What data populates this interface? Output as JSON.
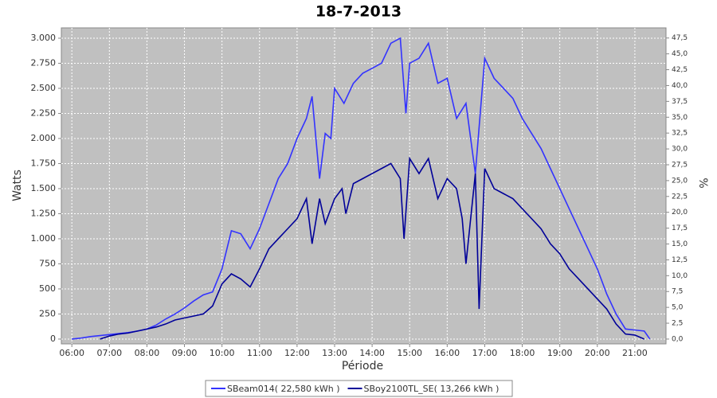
{
  "chart_data": {
    "type": "line",
    "title": "18-7-2013",
    "x_label": "Période",
    "y_label": "Watts",
    "y2_label": "%",
    "xlim": [
      5.72,
      21.83
    ],
    "xticks": [
      {
        "value": 6,
        "label": "06:00"
      },
      {
        "value": 7,
        "label": "07:00"
      },
      {
        "value": 8,
        "label": "08:00"
      },
      {
        "value": 9,
        "label": "09:00"
      },
      {
        "value": 10,
        "label": "10:00"
      },
      {
        "value": 11,
        "label": "11:00"
      },
      {
        "value": 12,
        "label": "12:00"
      },
      {
        "value": 13,
        "label": "13:00"
      },
      {
        "value": 14,
        "label": "14:00"
      },
      {
        "value": 15,
        "label": "15:00"
      },
      {
        "value": 16,
        "label": "16:00"
      },
      {
        "value": 17,
        "label": "17:00"
      },
      {
        "value": 18,
        "label": "18:00"
      },
      {
        "value": 19,
        "label": "19:00"
      },
      {
        "value": 20,
        "label": "20:00"
      },
      {
        "value": 21,
        "label": "21:00"
      }
    ],
    "ylim": [
      -48,
      3103
    ],
    "yticks": [
      0,
      250,
      500,
      750,
      {
        "value": 1000,
        "label": "1.000"
      },
      {
        "value": 1250,
        "label": "1.250"
      },
      {
        "value": 1500,
        "label": "1.500"
      },
      {
        "value": 1750,
        "label": "1.750"
      },
      {
        "value": 2000,
        "label": "2.000"
      },
      {
        "value": 2250,
        "label": "2.250"
      },
      {
        "value": 2500,
        "label": "2.500"
      },
      {
        "value": 2750,
        "label": "2.750"
      },
      {
        "value": 3000,
        "label": "3.000"
      }
    ],
    "y2lim": [
      -0.76,
      49.1
    ],
    "y2ticks": [
      {
        "value": 0,
        "label": "0,0"
      },
      {
        "value": 2.5,
        "label": "2,5"
      },
      {
        "value": 5,
        "label": "5,0"
      },
      {
        "value": 7.5,
        "label": "7,5"
      },
      {
        "value": 10,
        "label": "10,0"
      },
      {
        "value": 12.5,
        "label": "12,5"
      },
      {
        "value": 15,
        "label": "15,0"
      },
      {
        "value": 17.5,
        "label": "17,5"
      },
      {
        "value": 20,
        "label": "20,0"
      },
      {
        "value": 22.5,
        "label": "22,5"
      },
      {
        "value": 25,
        "label": "25,0"
      },
      {
        "value": 27.5,
        "label": "27,5"
      },
      {
        "value": 30,
        "label": "30,0"
      },
      {
        "value": 32.5,
        "label": "32,5"
      },
      {
        "value": 35,
        "label": "35,0"
      },
      {
        "value": 37.5,
        "label": "37,5"
      },
      {
        "value": 40,
        "label": "40,0"
      },
      {
        "value": 42.5,
        "label": "42,5"
      },
      {
        "value": 45,
        "label": "45,0"
      },
      {
        "value": 47.5,
        "label": "47,5"
      }
    ],
    "grid": true,
    "background": "#c0c0c0",
    "legend": "bottom",
    "series": [
      {
        "name": "SBeam014( 22,580 kWh )",
        "color": "#3333ff",
        "x": [
          6.0,
          6.25,
          6.5,
          6.75,
          7.0,
          7.25,
          7.5,
          7.75,
          8.0,
          8.25,
          8.5,
          8.75,
          9.0,
          9.25,
          9.5,
          9.75,
          10.0,
          10.25,
          10.5,
          10.75,
          11.0,
          11.25,
          11.5,
          11.75,
          12.0,
          12.25,
          12.4,
          12.6,
          12.75,
          12.9,
          13.0,
          13.25,
          13.5,
          13.75,
          14.0,
          14.25,
          14.5,
          14.75,
          14.9,
          15.0,
          15.25,
          15.5,
          15.75,
          16.0,
          16.25,
          16.5,
          16.75,
          17.0,
          17.25,
          17.5,
          17.75,
          18.0,
          18.25,
          18.5,
          18.75,
          19.0,
          19.25,
          19.5,
          19.75,
          20.0,
          20.25,
          20.5,
          20.75,
          21.0,
          21.25,
          21.4
        ],
        "values": [
          0,
          10,
          25,
          35,
          45,
          55,
          65,
          80,
          100,
          140,
          200,
          250,
          310,
          380,
          440,
          470,
          700,
          1080,
          1050,
          900,
          1100,
          1350,
          1600,
          1750,
          2000,
          2200,
          2420,
          1600,
          2050,
          2000,
          2500,
          2350,
          2550,
          2650,
          2700,
          2750,
          2950,
          3000,
          2250,
          2750,
          2800,
          2950,
          2550,
          2600,
          2200,
          2350,
          1650,
          2800,
          2600,
          2500,
          2400,
          2200,
          2050,
          1900,
          1700,
          1500,
          1300,
          1100,
          900,
          700,
          450,
          250,
          100,
          90,
          80,
          0
        ]
      },
      {
        "name": "SBoy2100TL_SE( 13,266 kWh )",
        "color": "#000099",
        "x": [
          6.75,
          7.0,
          7.25,
          7.5,
          7.75,
          8.0,
          8.25,
          8.5,
          8.75,
          9.0,
          9.25,
          9.5,
          9.75,
          10.0,
          10.25,
          10.5,
          10.75,
          11.0,
          11.25,
          11.5,
          11.75,
          12.0,
          12.25,
          12.4,
          12.6,
          12.75,
          12.9,
          13.0,
          13.2,
          13.3,
          13.5,
          13.75,
          14.0,
          14.25,
          14.5,
          14.75,
          14.85,
          15.0,
          15.25,
          15.5,
          15.75,
          16.0,
          16.25,
          16.4,
          16.5,
          16.75,
          16.85,
          17.0,
          17.25,
          17.5,
          17.75,
          18.0,
          18.25,
          18.5,
          18.75,
          19.0,
          19.25,
          19.5,
          19.75,
          20.0,
          20.25,
          20.5,
          20.75,
          21.0,
          21.25
        ],
        "values": [
          0,
          30,
          50,
          60,
          80,
          100,
          120,
          150,
          190,
          210,
          230,
          250,
          330,
          550,
          650,
          600,
          520,
          700,
          900,
          1000,
          1100,
          1200,
          1400,
          950,
          1400,
          1150,
          1300,
          1400,
          1500,
          1250,
          1550,
          1600,
          1650,
          1700,
          1750,
          1600,
          1000,
          1800,
          1650,
          1800,
          1400,
          1600,
          1500,
          1200,
          750,
          1650,
          300,
          1700,
          1500,
          1450,
          1400,
          1300,
          1200,
          1100,
          950,
          850,
          700,
          600,
          500,
          400,
          300,
          150,
          50,
          40,
          0
        ]
      }
    ]
  }
}
